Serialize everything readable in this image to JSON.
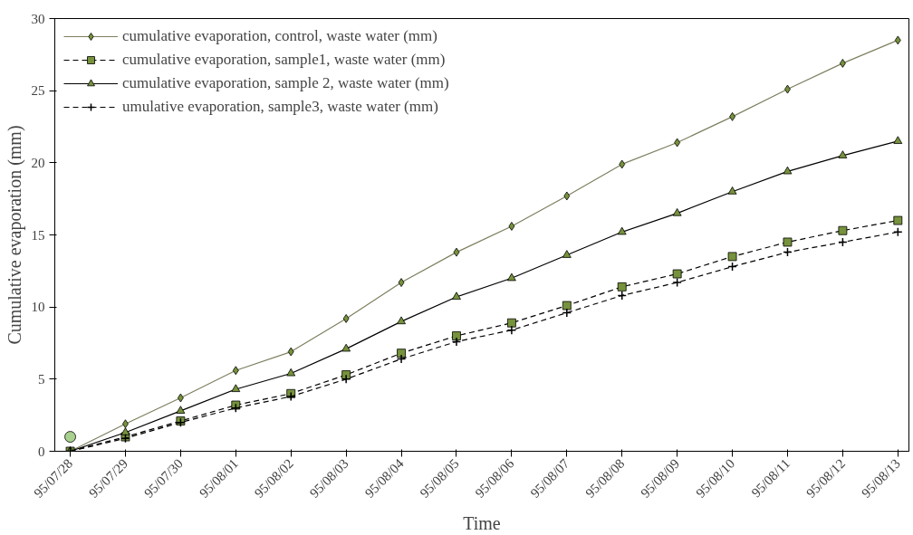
{
  "chart_data": {
    "type": "line",
    "xlabel": "Time",
    "ylabel": "Cumulative evaporation (mm)",
    "categories": [
      "95/07/28",
      "95/07/29",
      "95/07/30",
      "95/08/01",
      "95/08/02",
      "95/08/03",
      "95/08/04",
      "95/08/05",
      "95/08/06",
      "95/08/07",
      "95/08/08",
      "95/08/09",
      "95/08/10",
      "95/08/11",
      "95/08/12",
      "95/08/13"
    ],
    "ylim": [
      0,
      30
    ],
    "yticks": [
      0,
      5,
      10,
      15,
      20,
      25,
      30
    ],
    "grid": false,
    "legend": "top left",
    "series": [
      {
        "name": "cumulative evaporation, control, waste water (mm)",
        "color": "#7f7f60",
        "marker": "diamond",
        "line_style": "solid",
        "values": [
          0,
          1.9,
          3.7,
          5.6,
          6.9,
          9.2,
          11.7,
          13.8,
          15.6,
          17.7,
          19.9,
          21.4,
          23.2,
          25.1,
          26.9,
          28.5
        ]
      },
      {
        "name": "cumulative evaporation, sample1, waste water (mm)",
        "color": "#000000",
        "marker": "square",
        "line_style": "dashed",
        "values": [
          0,
          1.0,
          2.1,
          3.2,
          4.0,
          5.3,
          6.8,
          8.0,
          8.9,
          10.1,
          11.4,
          12.3,
          13.5,
          14.5,
          15.3,
          16.0
        ]
      },
      {
        "name": "cumulative evaporation, sample 2, waste water (mm)",
        "color": "#000000",
        "marker": "triangle",
        "line_style": "solid",
        "values": [
          0,
          1.3,
          2.8,
          4.3,
          5.4,
          7.1,
          9.0,
          10.7,
          12.0,
          13.6,
          15.2,
          16.5,
          18.0,
          19.4,
          20.5,
          21.5
        ]
      },
      {
        "name": "umulative evaporation, sample3, waste water (mm)",
        "color": "#000000",
        "marker": "cross",
        "line_style": "dashed",
        "values": [
          0,
          0.9,
          2.0,
          3.0,
          3.8,
          5.0,
          6.4,
          7.6,
          8.4,
          9.6,
          10.8,
          11.7,
          12.8,
          13.8,
          14.5,
          15.2
        ]
      },
      {
        "type": "scatter",
        "color": "#a9d18e",
        "marker": "circle",
        "values": [
          1.0,
          null,
          null,
          null,
          null,
          null,
          null,
          null,
          null,
          null,
          null,
          null,
          null,
          null,
          null,
          null
        ]
      }
    ]
  }
}
